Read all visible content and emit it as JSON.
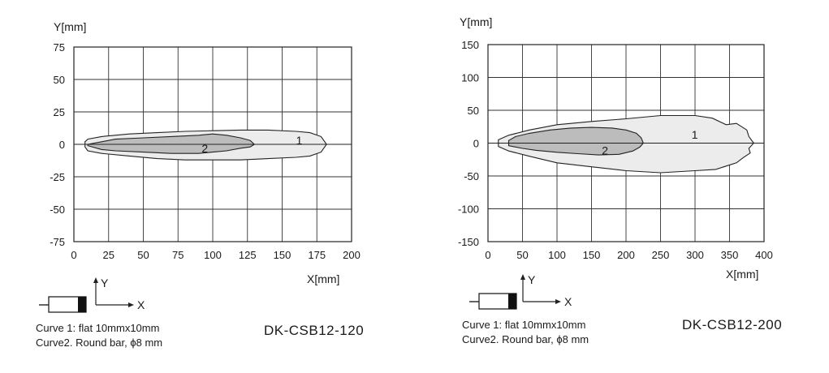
{
  "charts": [
    {
      "model": "DK-CSB12-120",
      "ylabel": "Y[mm]",
      "xlabel": "X[mm]",
      "legend": {
        "x_text": "X",
        "y_text": "Y",
        "curve1": "Curve 1: flat 10mmx10mm",
        "curve2": "Curve2. Round bar, ϕ8 mm"
      }
    },
    {
      "model": "DK-CSB12-200",
      "ylabel": "Y[mm]",
      "xlabel": "X[mm]",
      "legend": {
        "x_text": "X",
        "y_text": "Y",
        "curve1": "Curve 1: flat 10mmx10mm",
        "curve2": "Curve2. Round bar, ϕ8 mm"
      }
    }
  ],
  "chart_data": [
    {
      "type": "area",
      "title": "",
      "xlabel": "X[mm]",
      "ylabel": "Y[mm]",
      "xlim": [
        0,
        200
      ],
      "ylim": [
        -75,
        75
      ],
      "xticks": [
        "0",
        "25",
        "50",
        "75",
        "100",
        "125",
        "150",
        "175",
        "200"
      ],
      "yticks": [
        "75",
        "50",
        "25",
        "0",
        "-25",
        "-50",
        "-75"
      ],
      "grid": true,
      "series": [
        {
          "name": "1",
          "fill": "#ececec",
          "points": [
            [
              8,
              2
            ],
            [
              10,
              4
            ],
            [
              20,
              6
            ],
            [
              40,
              8
            ],
            [
              60,
              9
            ],
            [
              80,
              10
            ],
            [
              100,
              10.5
            ],
            [
              120,
              11
            ],
            [
              140,
              11
            ],
            [
              160,
              10
            ],
            [
              170,
              9
            ],
            [
              178,
              6
            ],
            [
              182,
              0
            ],
            [
              178,
              -6
            ],
            [
              170,
              -9
            ],
            [
              160,
              -10
            ],
            [
              140,
              -11
            ],
            [
              120,
              -12
            ],
            [
              100,
              -12
            ],
            [
              80,
              -12
            ],
            [
              60,
              -11
            ],
            [
              40,
              -9
            ],
            [
              20,
              -7
            ],
            [
              10,
              -5
            ],
            [
              8,
              -2
            ]
          ]
        },
        {
          "name": "2",
          "fill": "#bcbcbc",
          "points": [
            [
              10,
              0
            ],
            [
              20,
              2
            ],
            [
              30,
              4
            ],
            [
              50,
              5
            ],
            [
              70,
              6
            ],
            [
              90,
              7
            ],
            [
              100,
              8
            ],
            [
              110,
              7
            ],
            [
              120,
              5
            ],
            [
              127,
              3
            ],
            [
              130,
              0
            ],
            [
              127,
              -2
            ],
            [
              120,
              -3
            ],
            [
              110,
              -5
            ],
            [
              100,
              -6
            ],
            [
              90,
              -7
            ],
            [
              70,
              -7
            ],
            [
              50,
              -6
            ],
            [
              30,
              -5
            ],
            [
              20,
              -4
            ],
            [
              10,
              -1
            ]
          ]
        }
      ]
    },
    {
      "type": "area",
      "title": "",
      "xlabel": "X[mm]",
      "ylabel": "Y[mm]",
      "xlim": [
        0,
        400
      ],
      "ylim": [
        -150,
        150
      ],
      "xticks": [
        "0",
        "50",
        "100",
        "150",
        "200",
        "250",
        "300",
        "350",
        "400"
      ],
      "yticks": [
        "150",
        "100",
        "50",
        "0",
        "-50",
        "-100",
        "-150"
      ],
      "grid": true,
      "series": [
        {
          "name": "1",
          "fill": "#ececec",
          "points": [
            [
              15,
              5
            ],
            [
              30,
              12
            ],
            [
              60,
              20
            ],
            [
              100,
              28
            ],
            [
              150,
              33
            ],
            [
              200,
              37
            ],
            [
              250,
              42
            ],
            [
              300,
              42
            ],
            [
              325,
              38
            ],
            [
              345,
              28
            ],
            [
              360,
              30
            ],
            [
              375,
              20
            ],
            [
              378,
              10
            ],
            [
              385,
              0
            ],
            [
              378,
              -8
            ],
            [
              380,
              -15
            ],
            [
              370,
              -22
            ],
            [
              360,
              -30
            ],
            [
              345,
              -35
            ],
            [
              330,
              -40
            ],
            [
              300,
              -42
            ],
            [
              250,
              -45
            ],
            [
              200,
              -42
            ],
            [
              150,
              -36
            ],
            [
              100,
              -30
            ],
            [
              60,
              -20
            ],
            [
              30,
              -12
            ],
            [
              15,
              -5
            ]
          ]
        },
        {
          "name": "2",
          "fill": "#bcbcbc",
          "points": [
            [
              30,
              4
            ],
            [
              40,
              10
            ],
            [
              60,
              15
            ],
            [
              90,
              20
            ],
            [
              120,
              23
            ],
            [
              150,
              24
            ],
            [
              180,
              23
            ],
            [
              200,
              20
            ],
            [
              215,
              15
            ],
            [
              222,
              8
            ],
            [
              225,
              0
            ],
            [
              220,
              -6
            ],
            [
              210,
              -12
            ],
            [
              190,
              -17
            ],
            [
              160,
              -18
            ],
            [
              130,
              -16
            ],
            [
              100,
              -14
            ],
            [
              70,
              -11
            ],
            [
              50,
              -8
            ],
            [
              30,
              -4
            ]
          ]
        }
      ]
    }
  ]
}
